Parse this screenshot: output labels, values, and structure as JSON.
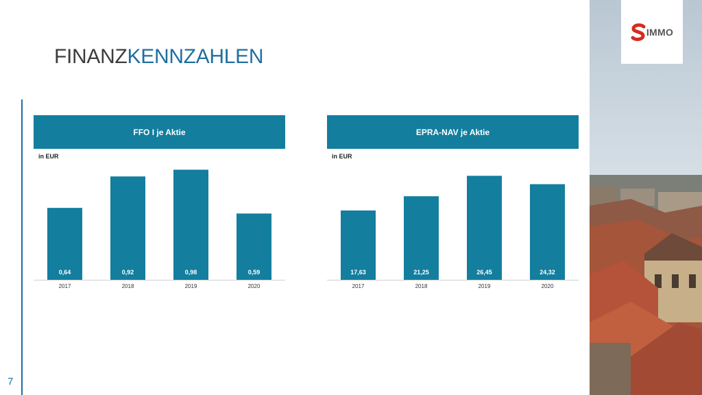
{
  "page": {
    "title_part1": "FINANZ",
    "title_part2": "KENNZAHLEN",
    "page_number": "7",
    "logo_text": "IMMO",
    "colors": {
      "bar": "#137e9e",
      "header": "#137e9e",
      "accent": "#1f6fa0",
      "logo_red": "#d52b1e"
    }
  },
  "chart_data": [
    {
      "type": "bar",
      "title": "FFO I je Aktie",
      "ylabel": "in EUR",
      "categories": [
        "2017",
        "2018",
        "2019",
        "2020"
      ],
      "values": [
        0.64,
        0.92,
        0.98,
        0.59
      ],
      "value_labels": [
        "0,64",
        "0,92",
        "0,98",
        "0,59"
      ],
      "ylim": [
        0,
        1.05
      ],
      "grid": false
    },
    {
      "type": "bar",
      "title": "EPRA-NAV je Aktie",
      "ylabel": "in EUR",
      "categories": [
        "2017",
        "2018",
        "2019",
        "2020"
      ],
      "values": [
        17.63,
        21.25,
        26.45,
        24.32
      ],
      "value_labels": [
        "17,63",
        "21,25",
        "26,45",
        "24,32"
      ],
      "ylim": [
        0,
        30
      ],
      "grid": false
    }
  ]
}
